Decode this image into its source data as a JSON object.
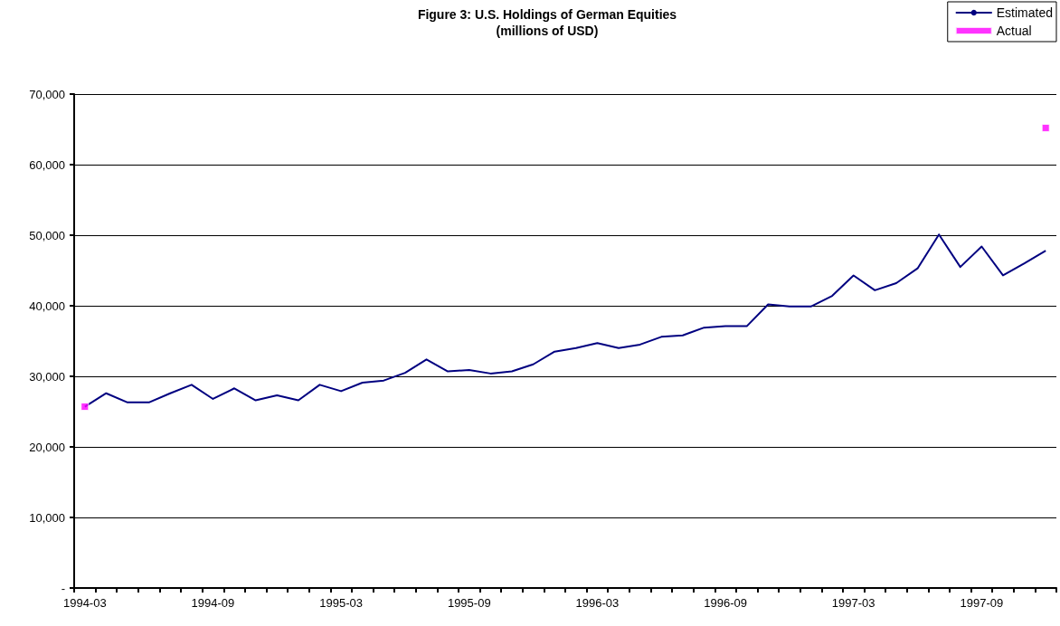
{
  "chart_data": {
    "type": "line",
    "title": "Figure 3: U.S. Holdings of German Equities",
    "subtitle": "(millions of USD)",
    "categories": [
      "1994-03",
      null,
      null,
      null,
      null,
      null,
      "1994-09",
      null,
      null,
      null,
      null,
      null,
      "1995-03",
      null,
      null,
      null,
      null,
      null,
      "1995-09",
      null,
      null,
      null,
      null,
      null,
      "1996-03",
      null,
      null,
      null,
      null,
      null,
      "1996-09",
      null,
      null,
      null,
      null,
      null,
      "1997-03",
      null,
      null,
      null,
      null,
      null,
      "1997-09",
      null,
      null,
      null
    ],
    "series": [
      {
        "name": "Estimated",
        "color": "#000080",
        "marker": "none",
        "values": [
          25700,
          27600,
          26300,
          26300,
          27600,
          28800,
          26800,
          28300,
          26600,
          27300,
          26600,
          28800,
          27900,
          29100,
          29400,
          30500,
          32400,
          30700,
          30900,
          30400,
          30700,
          31700,
          33500,
          34000,
          34700,
          34000,
          34500,
          35600,
          35800,
          36900,
          37100,
          37100,
          40200,
          39900,
          39900,
          41400,
          44300,
          42200,
          43200,
          45300,
          50100,
          45500,
          48400,
          44300,
          46000,
          47800
        ]
      },
      {
        "name": "Actual",
        "type": "scatter",
        "color": "#ff00ff",
        "marker": "square",
        "values": [
          25700,
          null,
          null,
          null,
          null,
          null,
          null,
          null,
          null,
          null,
          null,
          null,
          null,
          null,
          null,
          null,
          null,
          null,
          null,
          null,
          null,
          null,
          null,
          null,
          null,
          null,
          null,
          null,
          null,
          null,
          null,
          null,
          null,
          null,
          null,
          null,
          null,
          null,
          null,
          null,
          null,
          null,
          null,
          null,
          null,
          65200
        ]
      }
    ],
    "ylim": [
      0,
      70000
    ],
    "yticks": [
      {
        "value": 0,
        "label": "-"
      },
      {
        "value": 10000,
        "label": "10,000"
      },
      {
        "value": 20000,
        "label": "20,000"
      },
      {
        "value": 30000,
        "label": "30,000"
      },
      {
        "value": 40000,
        "label": "40,000"
      },
      {
        "value": 50000,
        "label": "50,000"
      },
      {
        "value": 60000,
        "label": "60,000"
      },
      {
        "value": 70000,
        "label": "70,000"
      }
    ],
    "grid": "y",
    "legend": "top right"
  }
}
